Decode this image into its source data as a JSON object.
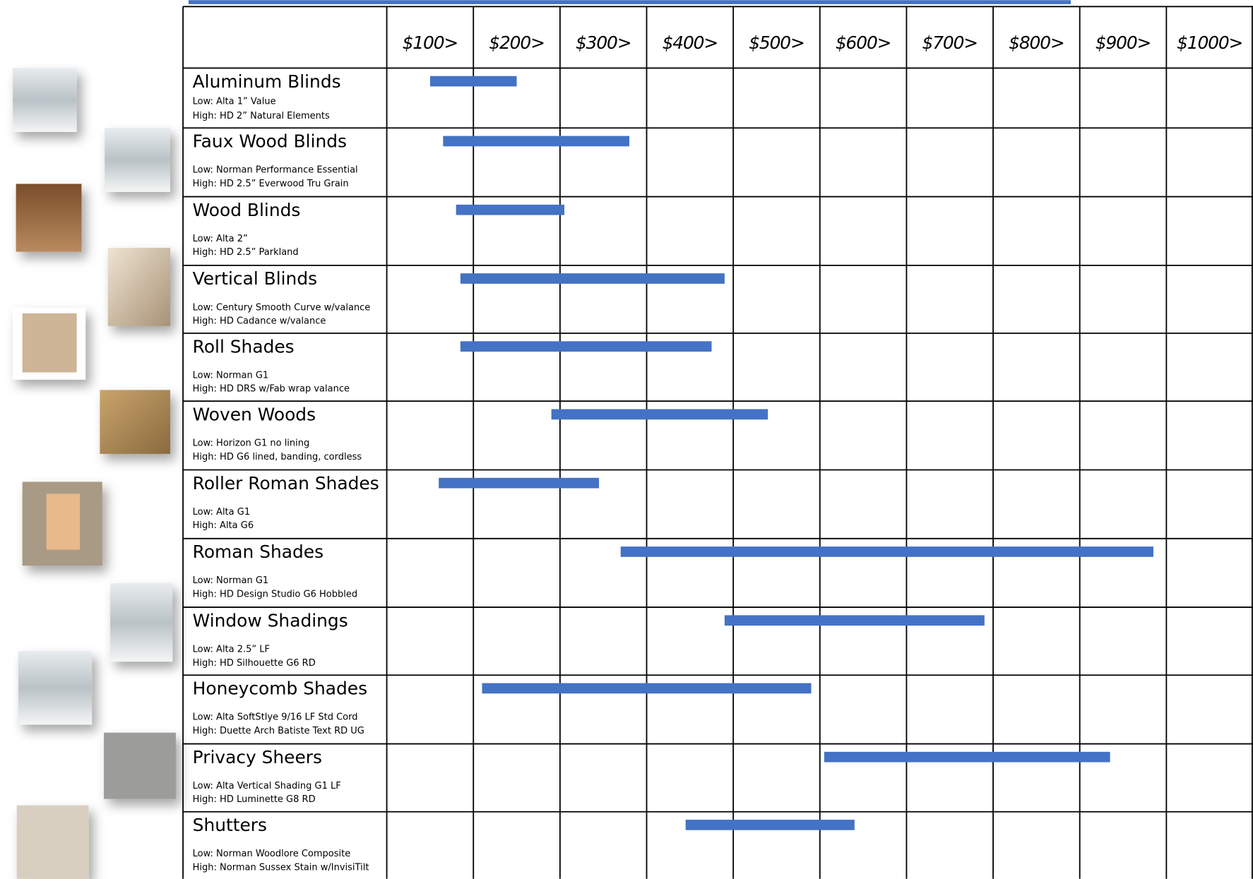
{
  "chart_data": {
    "type": "range-bar",
    "color": "#4472c4",
    "categories": [
      "Aluminum Blinds",
      "Faux Wood Blinds",
      "Wood Blinds",
      "Vertical Blinds",
      "Roll Shades",
      "Woven Woods",
      "Roller Roman Shades",
      "Roman Shades",
      "Window Shadings",
      "Honeycomb Shades",
      "Privacy Sheers",
      "Shutters"
    ],
    "low_products": [
      "Low: Alta 1” Value",
      "Low:  Norman Performance Essential",
      "Low:  Alta 2”",
      "Low:  Century Smooth Curve w/valance",
      "Low:  Norman G1",
      "Low:  Horizon G1 no lining",
      "Low:  Alta G1",
      "Low:  Norman G1",
      "Low:  Alta 2.5” LF",
      "Low:  Alta SoftStlye 9/16 LF Std Cord",
      "Low:  Alta Vertical Shading G1 LF",
      "Low:  Norman Woodlore Composite"
    ],
    "high_products": [
      "High:  HD 2” Natural Elements",
      "High:  HD 2.5” Everwood Tru Grain",
      "High:  HD 2.5” Parkland",
      "High:  HD Cadance w/valance",
      "High:  HD DRS w/Fab wrap valance",
      "High:  HD G6 lined, banding, cordless",
      "High:  Alta G6",
      "High:  HD Design Studio G6 Hobbled",
      "High:  HD Silhouette G6 RD",
      "High:  Duette Arch Batiste Text RD UG",
      "High:  HD Luminette G8 RD",
      "High:  Norman Sussex Stain w/InvisiTilt"
    ],
    "low": [
      150,
      165,
      180,
      185,
      185,
      290,
      160,
      370,
      490,
      210,
      605,
      445
    ],
    "high": [
      250,
      380,
      305,
      490,
      475,
      540,
      345,
      985,
      790,
      590,
      935,
      640
    ],
    "xlim": [
      100,
      1100
    ],
    "xticks": [
      {
        "value": 100,
        "label": "$100>"
      },
      {
        "value": 200,
        "label": "$200>"
      },
      {
        "value": 300,
        "label": "$300>"
      },
      {
        "value": 400,
        "label": "$400>"
      },
      {
        "value": 500,
        "label": "$500>"
      },
      {
        "value": 600,
        "label": "$600>"
      },
      {
        "value": 700,
        "label": "$700>"
      },
      {
        "value": 800,
        "label": "$800>"
      },
      {
        "value": 900,
        "label": "$900>"
      },
      {
        "value": 1000,
        "label": "$1000>"
      }
    ]
  }
}
